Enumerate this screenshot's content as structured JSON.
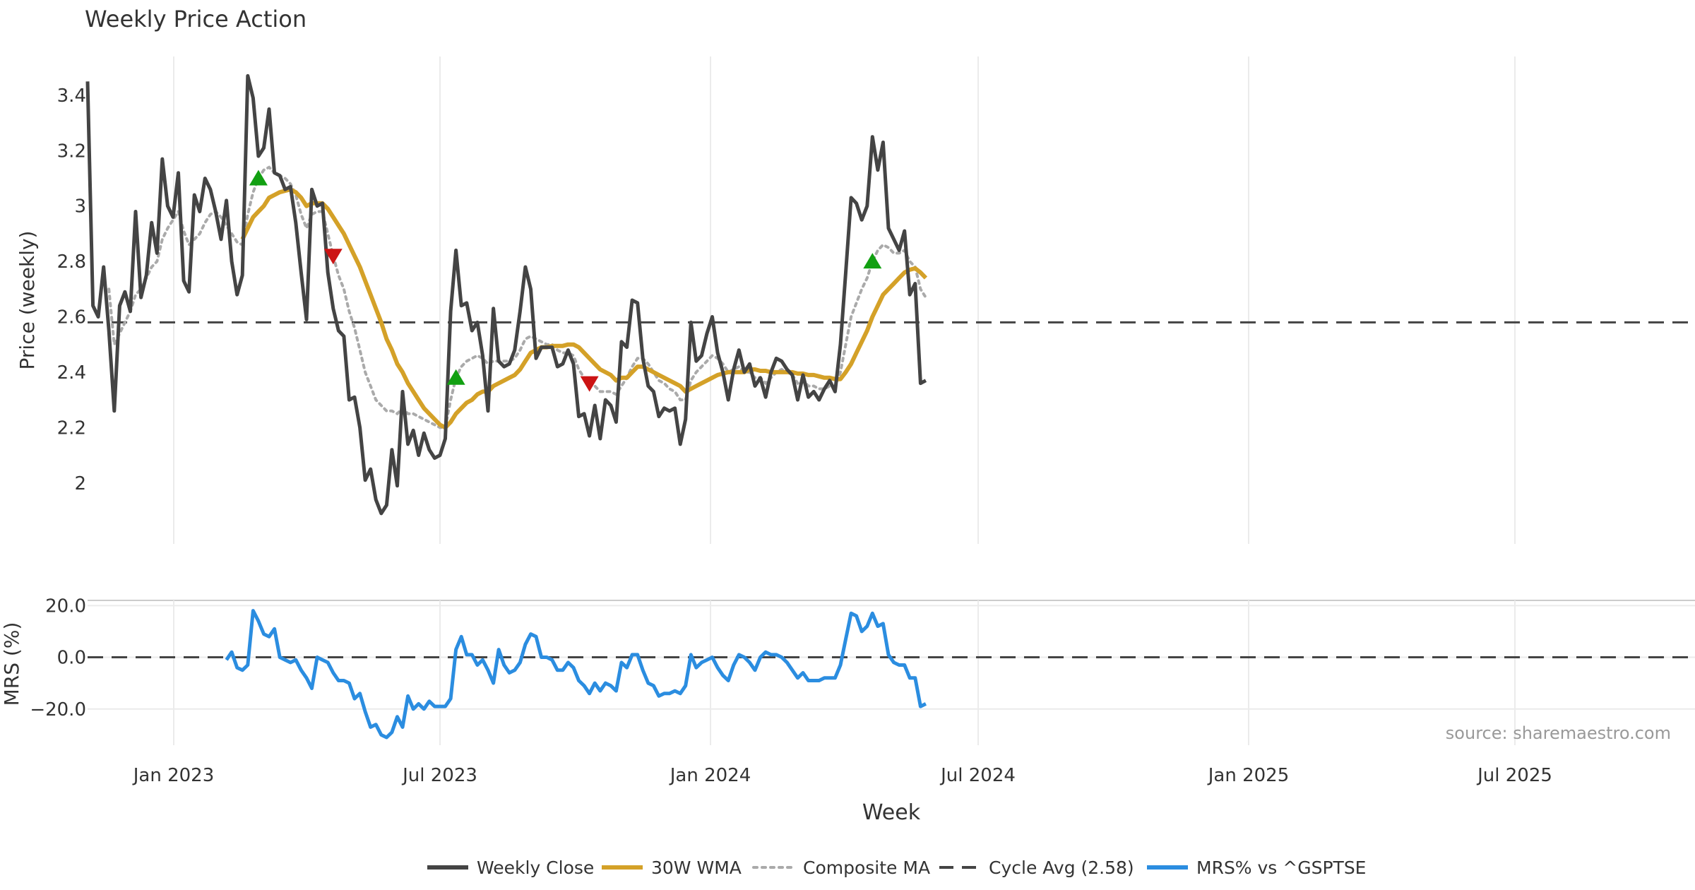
{
  "chart_data": {
    "type": "line",
    "title": "Weekly Price Action",
    "source": "source: sharemaestro.com",
    "xlabel": "Week",
    "x_ticks": [
      "Jan 2023",
      "Jul 2023",
      "Jan 2024",
      "Jul 2024",
      "Jan 2025",
      "Jul 2025"
    ],
    "price_panel": {
      "ylabel": "Price (weekly)",
      "ylim": [
        1.78,
        3.54
      ],
      "y_ticks": [
        "3.4",
        "3.2",
        "3",
        "2.8",
        "2.6",
        "2.4",
        "2.2",
        "2"
      ],
      "cycle_avg": 2.58,
      "weekly_close": [
        3.45,
        2.64,
        2.6,
        2.78,
        2.55,
        2.26,
        2.64,
        2.69,
        2.62,
        2.98,
        2.67,
        2.75,
        2.94,
        2.83,
        3.17,
        3.0,
        2.96,
        3.12,
        2.73,
        2.69,
        3.04,
        2.98,
        3.1,
        3.06,
        2.98,
        2.88,
        3.02,
        2.8,
        2.68,
        2.75,
        3.47,
        3.39,
        3.18,
        3.21,
        3.35,
        3.12,
        3.11,
        3.06,
        3.07,
        2.94,
        2.76,
        2.59,
        3.06,
        3.0,
        3.01,
        2.76,
        2.63,
        2.55,
        2.53,
        2.3,
        2.31,
        2.2,
        2.01,
        2.05,
        1.94,
        1.89,
        1.92,
        2.12,
        1.99,
        2.33,
        2.14,
        2.19,
        2.1,
        2.18,
        2.12,
        2.09,
        2.1,
        2.16,
        2.62,
        2.84,
        2.64,
        2.65,
        2.55,
        2.58,
        2.46,
        2.26,
        2.63,
        2.44,
        2.42,
        2.43,
        2.48,
        2.62,
        2.78,
        2.7,
        2.45,
        2.49,
        2.49,
        2.49,
        2.42,
        2.43,
        2.48,
        2.43,
        2.24,
        2.25,
        2.17,
        2.28,
        2.16,
        2.3,
        2.28,
        2.22,
        2.51,
        2.49,
        2.66,
        2.65,
        2.45,
        2.35,
        2.33,
        2.24,
        2.27,
        2.26,
        2.27,
        2.14,
        2.23,
        2.58,
        2.44,
        2.46,
        2.54,
        2.6,
        2.47,
        2.4,
        2.3,
        2.41,
        2.48,
        2.4,
        2.43,
        2.35,
        2.38,
        2.31,
        2.4,
        2.45,
        2.44,
        2.41,
        2.39,
        2.3,
        2.39,
        2.31,
        2.33,
        2.3,
        2.34,
        2.37,
        2.33,
        2.5,
        2.76,
        3.03,
        3.01,
        2.95,
        3.0,
        3.25,
        3.13,
        3.23,
        2.92,
        2.88,
        2.84,
        2.91,
        2.68,
        2.72,
        2.36,
        2.37
      ],
      "wma_30w": [
        null,
        null,
        null,
        null,
        null,
        null,
        null,
        null,
        null,
        null,
        null,
        null,
        null,
        null,
        null,
        null,
        null,
        null,
        null,
        null,
        null,
        null,
        null,
        null,
        null,
        null,
        null,
        null,
        null,
        2.88,
        2.92,
        2.96,
        2.98,
        3.0,
        3.03,
        3.04,
        3.05,
        3.055,
        3.06,
        3.05,
        3.03,
        3.0,
        3.01,
        3.01,
        3.01,
        2.99,
        2.96,
        2.93,
        2.9,
        2.86,
        2.82,
        2.78,
        2.73,
        2.68,
        2.63,
        2.58,
        2.52,
        2.48,
        2.43,
        2.4,
        2.36,
        2.33,
        2.3,
        2.27,
        2.25,
        2.23,
        2.21,
        2.2,
        2.22,
        2.25,
        2.27,
        2.29,
        2.3,
        2.32,
        2.33,
        2.33,
        2.35,
        2.36,
        2.37,
        2.38,
        2.39,
        2.41,
        2.44,
        2.47,
        2.48,
        2.49,
        2.49,
        2.495,
        2.495,
        2.495,
        2.5,
        2.5,
        2.49,
        2.47,
        2.45,
        2.43,
        2.41,
        2.4,
        2.39,
        2.37,
        2.38,
        2.38,
        2.4,
        2.42,
        2.42,
        2.41,
        2.4,
        2.39,
        2.38,
        2.37,
        2.36,
        2.35,
        2.33,
        2.34,
        2.35,
        2.36,
        2.37,
        2.38,
        2.39,
        2.395,
        2.4,
        2.4,
        2.4,
        2.4,
        2.41,
        2.41,
        2.405,
        2.405,
        2.4,
        2.4,
        2.4,
        2.4,
        2.4,
        2.395,
        2.395,
        2.39,
        2.39,
        2.385,
        2.38,
        2.38,
        2.375,
        2.375,
        2.4,
        2.43,
        2.47,
        2.51,
        2.55,
        2.6,
        2.64,
        2.68,
        2.7,
        2.72,
        2.74,
        2.76,
        2.77,
        2.775,
        2.76,
        2.74
      ]
    },
    "composite_ma": [
      null,
      null,
      null,
      null,
      2.7,
      2.5,
      2.54,
      2.58,
      2.62,
      2.68,
      2.7,
      2.74,
      2.78,
      2.8,
      2.88,
      2.92,
      2.95,
      2.98,
      2.91,
      2.86,
      2.88,
      2.9,
      2.94,
      2.97,
      2.98,
      2.96,
      2.93,
      2.9,
      2.87,
      2.86,
      2.97,
      3.05,
      3.1,
      3.13,
      3.14,
      3.12,
      3.11,
      3.1,
      3.08,
      3.04,
      2.97,
      2.92,
      2.97,
      2.98,
      2.98,
      2.9,
      2.82,
      2.75,
      2.7,
      2.62,
      2.56,
      2.48,
      2.4,
      2.35,
      2.3,
      2.28,
      2.26,
      2.26,
      2.25,
      2.27,
      2.25,
      2.25,
      2.24,
      2.23,
      2.22,
      2.21,
      2.2,
      2.2,
      2.3,
      2.38,
      2.42,
      2.44,
      2.45,
      2.46,
      2.45,
      2.43,
      2.44,
      2.44,
      2.44,
      2.44,
      2.45,
      2.48,
      2.52,
      2.53,
      2.52,
      2.51,
      2.5,
      2.5,
      2.48,
      2.47,
      2.47,
      2.46,
      2.41,
      2.38,
      2.36,
      2.35,
      2.33,
      2.33,
      2.33,
      2.32,
      2.35,
      2.38,
      2.42,
      2.45,
      2.45,
      2.43,
      2.4,
      2.37,
      2.36,
      2.34,
      2.33,
      2.3,
      2.3,
      2.37,
      2.4,
      2.42,
      2.44,
      2.46,
      2.45,
      2.43,
      2.4,
      2.41,
      2.42,
      2.4,
      2.4,
      2.38,
      2.38,
      2.36,
      2.38,
      2.4,
      2.41,
      2.4,
      2.39,
      2.36,
      2.37,
      2.35,
      2.35,
      2.34,
      2.34,
      2.35,
      2.35,
      2.4,
      2.5,
      2.6,
      2.65,
      2.7,
      2.74,
      2.8,
      2.84,
      2.86,
      2.85,
      2.83,
      2.83,
      2.84,
      2.8,
      2.78,
      2.7,
      2.67
    ],
    "buy_signals_week_index": [
      32,
      69,
      147
    ],
    "sell_signals_week_index": [
      46,
      94
    ],
    "mrs_panel": {
      "ylabel": "MRS (%)",
      "ylim": [
        -34,
        22
      ],
      "y_ticks": [
        "20.0",
        "0.0",
        "−20.0"
      ],
      "zero_line": 0,
      "mrs_pct": [
        null,
        null,
        null,
        null,
        null,
        null,
        null,
        null,
        null,
        null,
        null,
        null,
        null,
        null,
        null,
        null,
        null,
        null,
        null,
        null,
        null,
        null,
        null,
        null,
        null,
        null,
        -1,
        2,
        -4,
        -5,
        -3,
        18,
        14,
        9,
        8,
        11,
        0,
        -1,
        -2,
        -1,
        -5,
        -8,
        -12,
        0,
        -1,
        -2,
        -6,
        -9,
        -9,
        -10,
        -16,
        -14,
        -21,
        -27,
        -26,
        -30,
        -31,
        -29,
        -23,
        -27,
        -15,
        -20,
        -18,
        -20,
        -17,
        -19,
        -19,
        -19,
        -16,
        3,
        8,
        1,
        1,
        -3,
        -1,
        -5,
        -10,
        3,
        -3,
        -6,
        -5,
        -2,
        5,
        9,
        8,
        0,
        0,
        -1,
        -5,
        -5,
        -2,
        -4,
        -9,
        -11,
        -14,
        -10,
        -13,
        -10,
        -11,
        -13,
        -2,
        -4,
        1,
        1,
        -5,
        -10,
        -11,
        -15,
        -14,
        -14,
        -13,
        -14,
        -11,
        1,
        -4,
        -2,
        -1,
        0,
        -4,
        -7,
        -9,
        -3,
        1,
        0,
        -2,
        -5,
        0,
        2,
        1,
        1,
        0,
        -2,
        -5,
        -8,
        -6,
        -9,
        -9,
        -9,
        -8,
        -8,
        -8,
        -3,
        7,
        17,
        16,
        10,
        12,
        17,
        12,
        13,
        1,
        -2,
        -3,
        -3,
        -8,
        -8,
        -19,
        -18
      ]
    },
    "legend": [
      {
        "label": "Weekly Close",
        "color": "#444444",
        "style": "solid"
      },
      {
        "label": "30W WMA",
        "color": "#d4a128",
        "style": "solid"
      },
      {
        "label": "Composite MA",
        "color": "#aaaaaa",
        "style": "dotted"
      },
      {
        "label": "Cycle Avg (2.58)",
        "color": "#444444",
        "style": "dashed"
      },
      {
        "label": "MRS% vs ^GSPTSE",
        "color": "#2b8de0",
        "style": "solid"
      }
    ]
  }
}
